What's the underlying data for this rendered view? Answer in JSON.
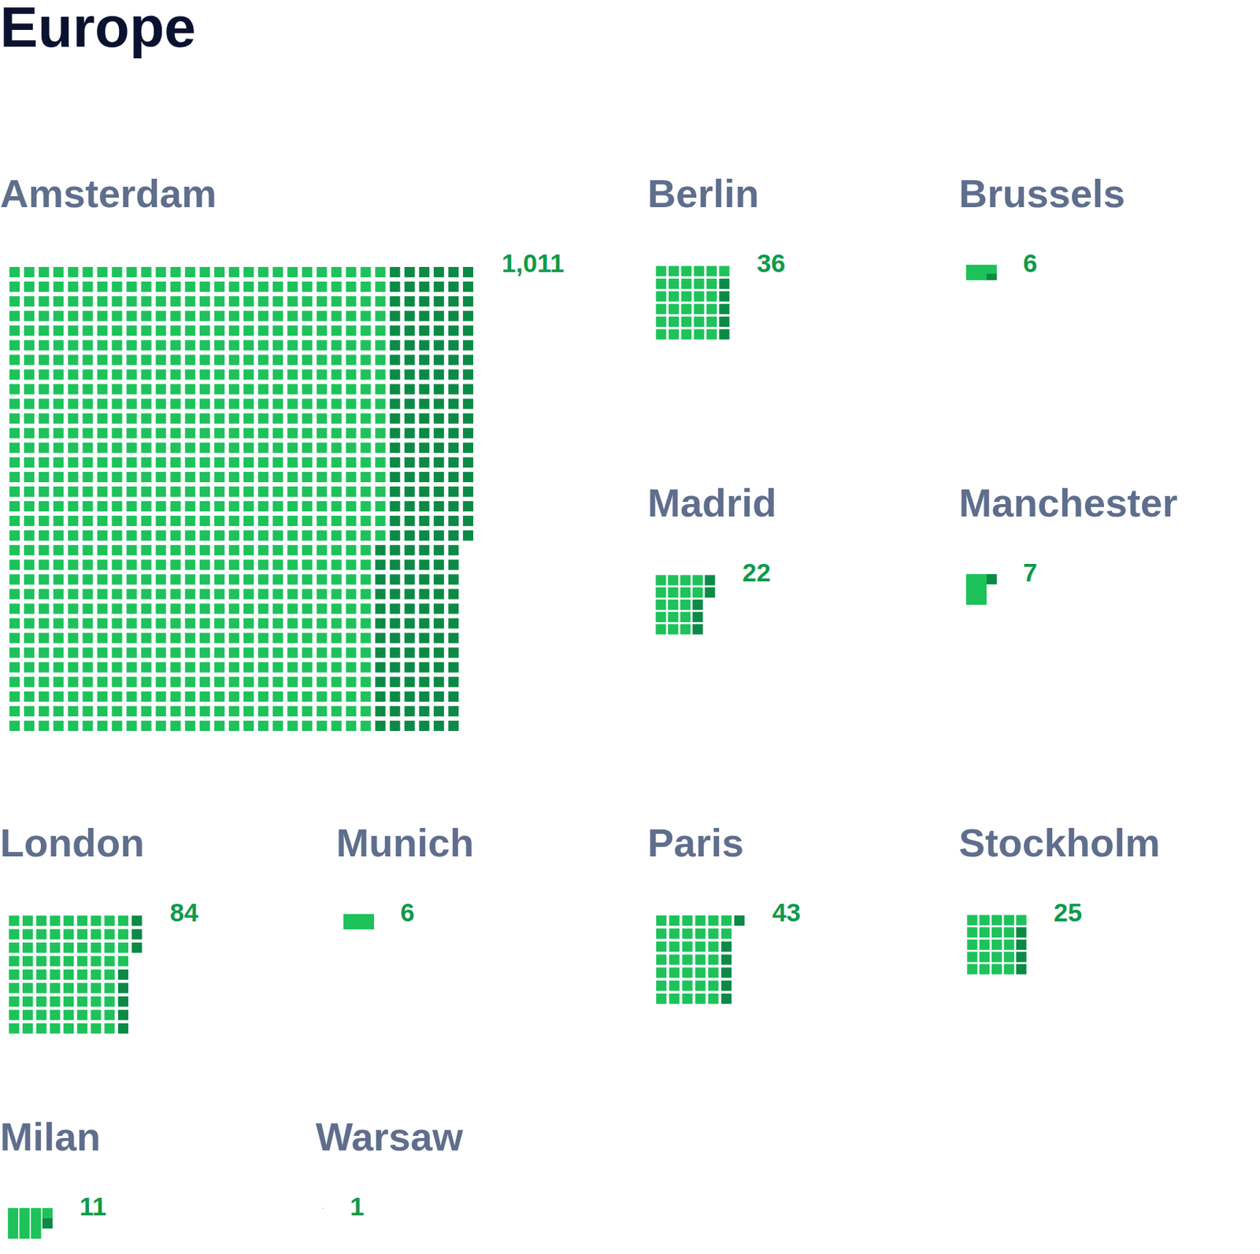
{
  "chart_data": {
    "type": "waffle",
    "title": "Europe",
    "categories": [
      "Amsterdam",
      "Berlin",
      "Brussels",
      "Madrid",
      "Manchester",
      "London",
      "Munich",
      "Paris",
      "Stockholm",
      "Milan",
      "Warsaw"
    ],
    "values": [
      1011,
      36,
      6,
      22,
      7,
      84,
      6,
      43,
      25,
      11,
      1
    ],
    "value_labels": [
      "1,011",
      "36",
      "6",
      "22",
      "7",
      "84",
      "6",
      "43",
      "25",
      "11",
      "1"
    ],
    "data_labels": true,
    "stacked": true,
    "tick_labels": false,
    "grid": false,
    "series": [
      {
        "color": "#1dc25a",
        "values": [
          819,
          31,
          5,
          17,
          6,
          76,
          6,
          37,
          21,
          10,
          1
        ]
      },
      {
        "color": "#0b8a46",
        "values": [
          192,
          5,
          1,
          5,
          1,
          8,
          0,
          6,
          4,
          1,
          0
        ]
      }
    ]
  }
}
